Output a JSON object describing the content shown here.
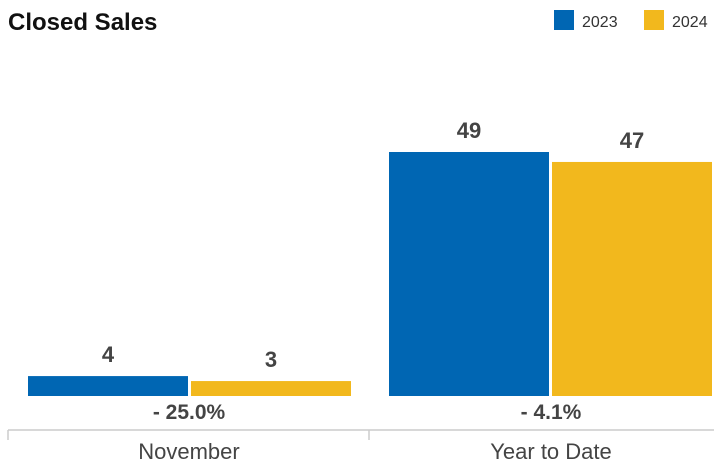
{
  "chart_data": {
    "type": "bar",
    "title": "Closed Sales",
    "categories": [
      "November",
      "Year to Date"
    ],
    "series": [
      {
        "name": "2023",
        "values": [
          4,
          49
        ],
        "color": "#0066b3"
      },
      {
        "name": "2024",
        "values": [
          3,
          47
        ],
        "color": "#f2b81d"
      }
    ],
    "percent_change": [
      "- 25.0%",
      "- 4.1%"
    ],
    "ylim": [
      0,
      49
    ],
    "legend_position": "top-right",
    "grid": false
  }
}
